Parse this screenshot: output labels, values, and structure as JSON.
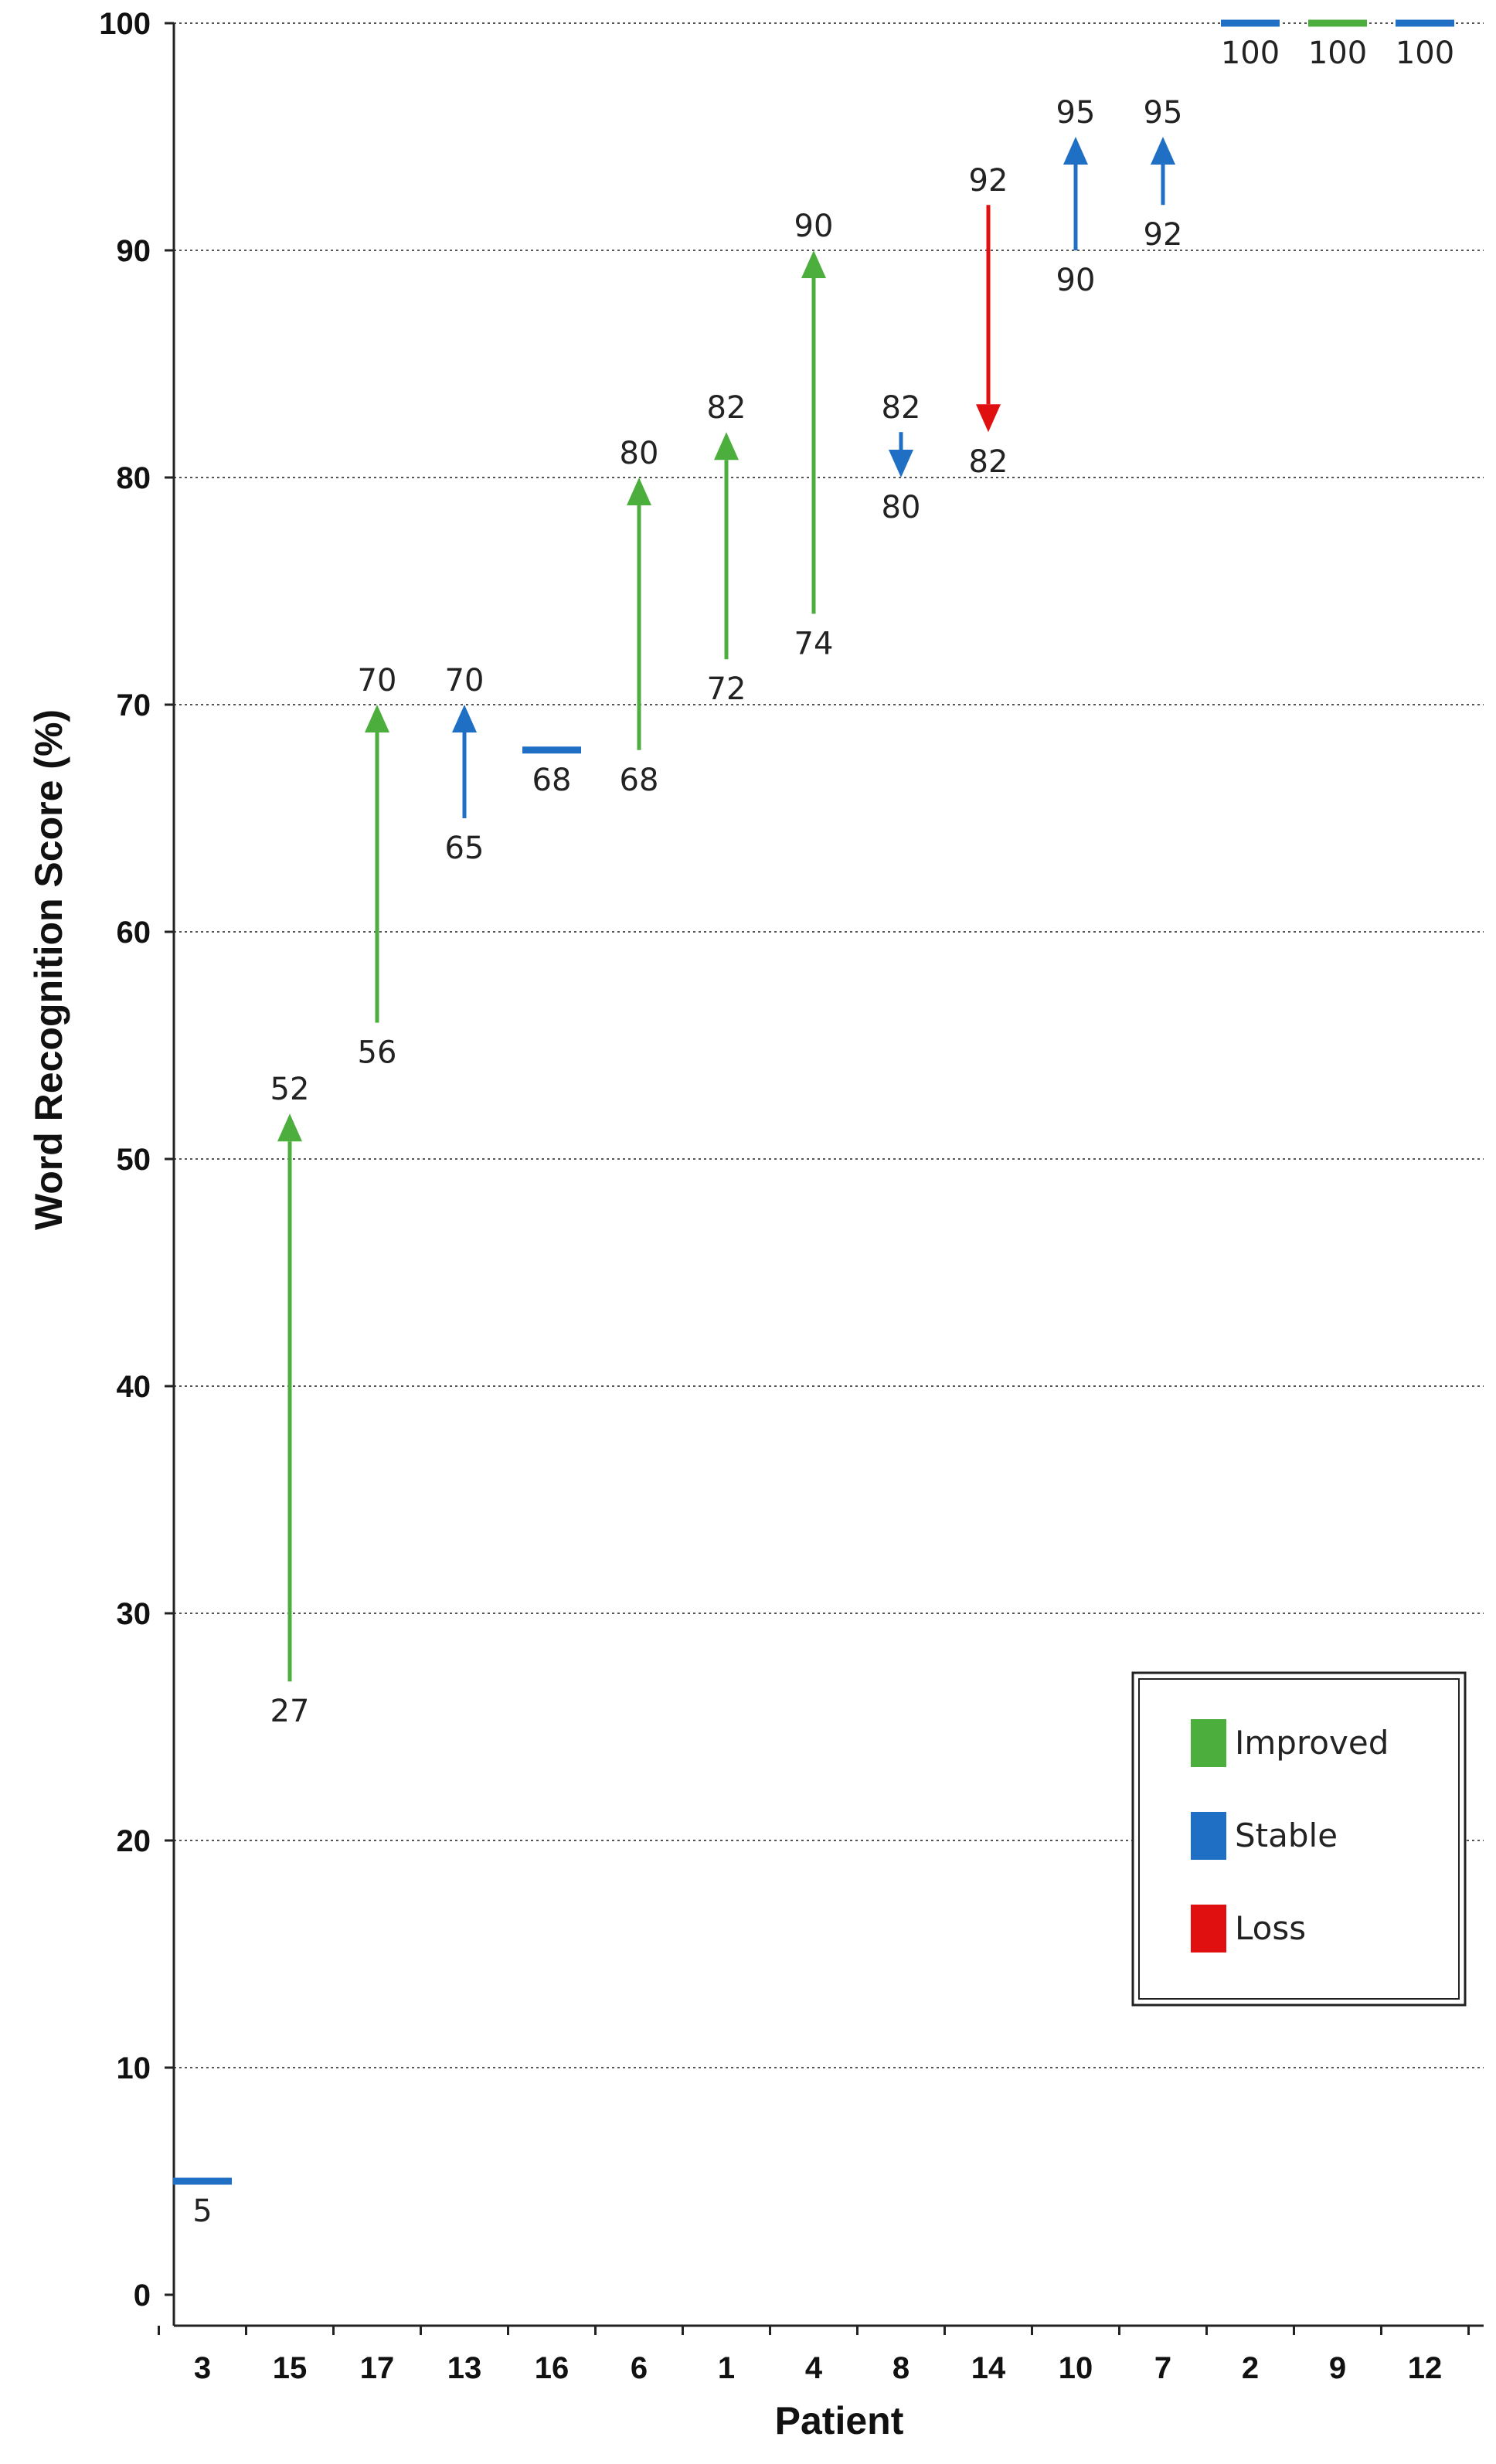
{
  "chart_data": {
    "type": "arrow-range",
    "xlabel": "Patient",
    "ylabel": "Word Recognition Score (%)",
    "ylim": [
      0,
      100
    ],
    "yticks": [
      0,
      10,
      20,
      30,
      40,
      50,
      60,
      70,
      80,
      90,
      100
    ],
    "grid": "horizontal dotted",
    "legend_position": "bottom-right",
    "colors": {
      "Improved": "#4caf3d",
      "Stable": "#1f6fc5",
      "Loss": "#e01010"
    },
    "legend": [
      {
        "label": "Improved",
        "color": "#4caf3d"
      },
      {
        "label": "Stable",
        "color": "#1f6fc5"
      },
      {
        "label": "Loss",
        "color": "#e01010"
      }
    ],
    "patients": [
      {
        "patient": "3",
        "pre": 5,
        "post": 5,
        "status": "Stable",
        "labels": [
          "5"
        ]
      },
      {
        "patient": "15",
        "pre": 27,
        "post": 52,
        "status": "Improved",
        "labels": [
          "27",
          "52"
        ]
      },
      {
        "patient": "17",
        "pre": 56,
        "post": 70,
        "status": "Improved",
        "labels": [
          "56",
          "70"
        ]
      },
      {
        "patient": "13",
        "pre": 65,
        "post": 70,
        "status": "Stable",
        "labels": [
          "65",
          "70"
        ]
      },
      {
        "patient": "16",
        "pre": 68,
        "post": 68,
        "status": "Stable",
        "labels": [
          "68"
        ]
      },
      {
        "patient": "6",
        "pre": 68,
        "post": 80,
        "status": "Improved",
        "labels": [
          "68",
          "80"
        ]
      },
      {
        "patient": "1",
        "pre": 72,
        "post": 82,
        "status": "Improved",
        "labels": [
          "72",
          "82"
        ]
      },
      {
        "patient": "4",
        "pre": 74,
        "post": 90,
        "status": "Improved",
        "labels": [
          "74",
          "90"
        ]
      },
      {
        "patient": "8",
        "pre": 82,
        "post": 80,
        "status": "Stable",
        "labels": [
          "82",
          "80"
        ]
      },
      {
        "patient": "14",
        "pre": 92,
        "post": 82,
        "status": "Loss",
        "labels": [
          "92",
          "82"
        ]
      },
      {
        "patient": "10",
        "pre": 90,
        "post": 95,
        "status": "Stable",
        "labels": [
          "90",
          "95"
        ]
      },
      {
        "patient": "7",
        "pre": 92,
        "post": 95,
        "status": "Stable",
        "labels": [
          "92",
          "95"
        ]
      },
      {
        "patient": "2",
        "pre": 100,
        "post": 100,
        "status": "Stable",
        "labels": [
          "100"
        ]
      },
      {
        "patient": "9",
        "pre": 100,
        "post": 100,
        "status": "Improved",
        "labels": [
          "100"
        ]
      },
      {
        "patient": "12",
        "pre": 100,
        "post": 100,
        "status": "Stable",
        "labels": [
          "100"
        ]
      }
    ]
  }
}
